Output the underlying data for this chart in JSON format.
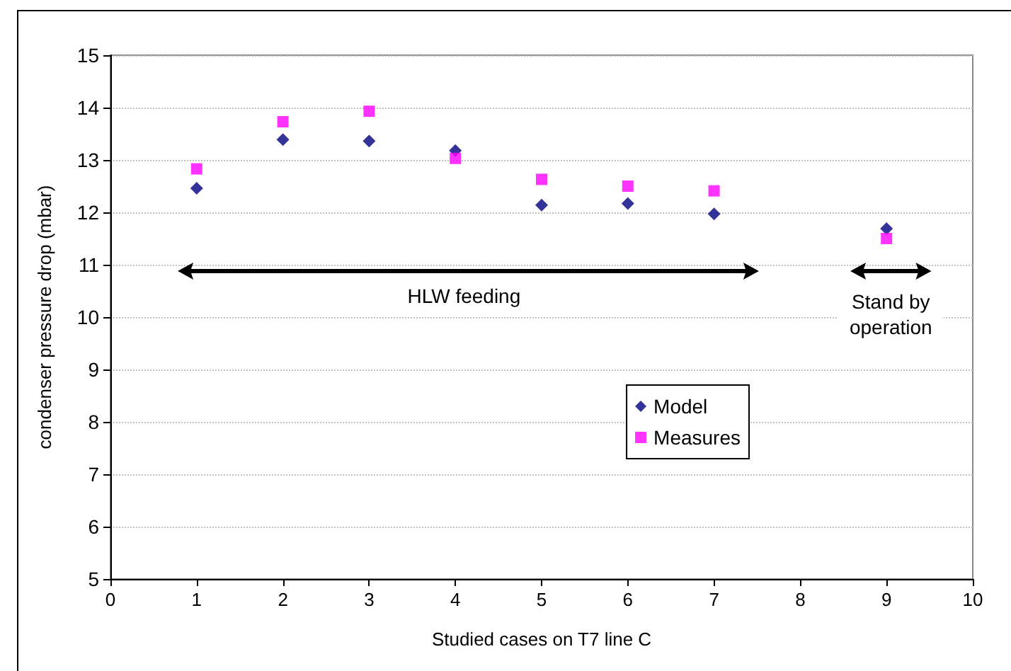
{
  "chart_data": {
    "type": "scatter",
    "xlabel": "Studied cases on T7 line C",
    "ylabel": "condenser pressure drop (mbar)",
    "x": [
      1,
      2,
      3,
      4,
      5,
      6,
      7,
      9
    ],
    "series": [
      {
        "name": "Model",
        "color": "#000080",
        "marker": "diamond",
        "values": [
          12.46,
          13.39,
          13.36,
          13.18,
          12.14,
          12.17,
          11.97,
          11.69
        ]
      },
      {
        "name": "Measures",
        "color": "#ff00ff",
        "marker": "square",
        "values": [
          12.83,
          13.73,
          13.93,
          13.03,
          12.63,
          12.5,
          12.41,
          11.5
        ]
      }
    ],
    "xlim": [
      0,
      10
    ],
    "xticks": [
      0,
      1,
      2,
      3,
      4,
      5,
      6,
      7,
      8,
      9,
      10
    ],
    "ylim": [
      5,
      15
    ],
    "yticks": [
      5,
      6,
      7,
      8,
      9,
      10,
      11,
      12,
      13,
      14,
      15
    ],
    "grid": "y",
    "legend": "bottom right",
    "annotations": [
      "HLW feeding",
      "Stand by\noperation"
    ]
  }
}
